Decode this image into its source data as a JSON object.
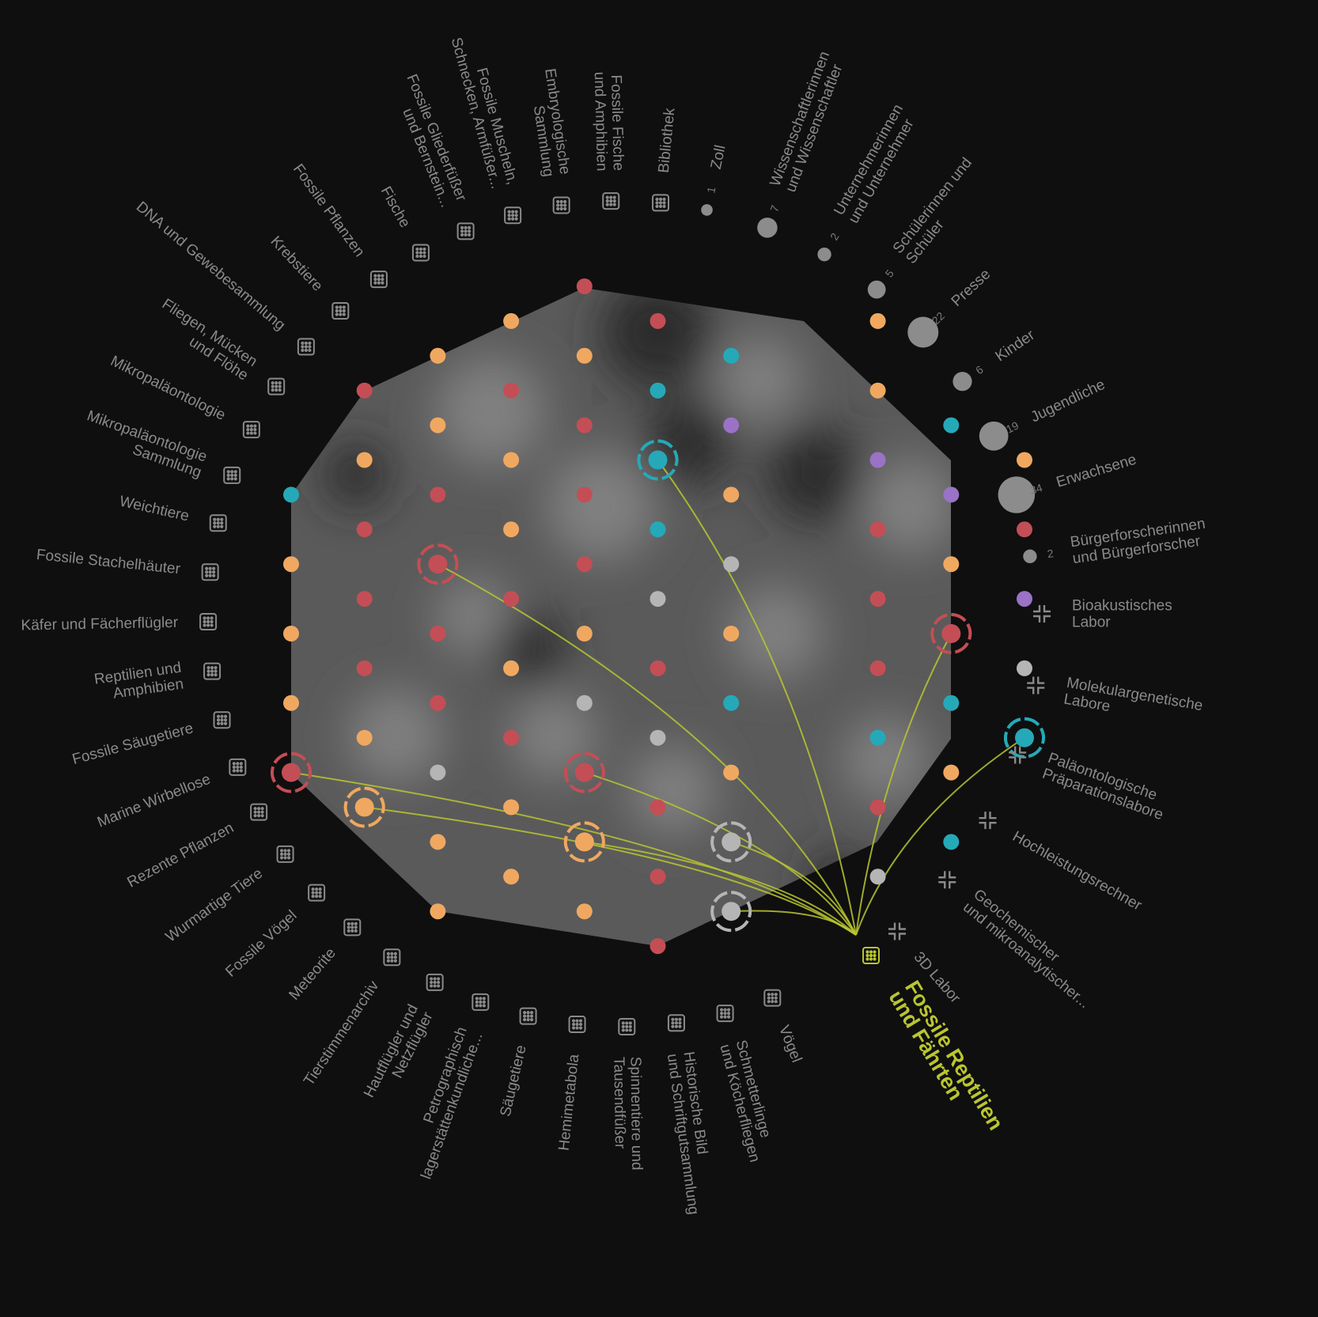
{
  "colors": {
    "background": "#0f0f0f",
    "label": "#8a8a8a",
    "highlight": "#b9c530",
    "orange": "#f0a860",
    "red": "#c44e55",
    "teal": "#25a9b8",
    "purple": "#9a72c6",
    "grey": "#b5b5b5",
    "audience_dot": "#8c8c8c"
  },
  "highlighted_collection": {
    "lines": [
      "Fossile Reptilien",
      "und Fährten"
    ],
    "icon": "collection-grid-icon"
  },
  "collections": [
    {
      "lines": [
        "Vögel"
      ]
    },
    {
      "lines": [
        "Schmetterlinge",
        "und Köcherfliegen"
      ]
    },
    {
      "lines": [
        "Historische Bild",
        "und Schriftgutsammlung"
      ]
    },
    {
      "lines": [
        "Spinnentiere und",
        "Tausendfüßer"
      ]
    },
    {
      "lines": [
        "Hemimetabola"
      ]
    },
    {
      "lines": [
        "Säugetiere"
      ]
    },
    {
      "lines": [
        "Petrographisch",
        "lagerstättenkundliche..."
      ]
    },
    {
      "lines": [
        "Hautflügler und",
        "Netzflügler"
      ]
    },
    {
      "lines": [
        "Tierstimmenarchiv"
      ]
    },
    {
      "lines": [
        "Meteorite"
      ]
    },
    {
      "lines": [
        "Fossile Vögel"
      ]
    },
    {
      "lines": [
        "Wurmartige Tiere"
      ]
    },
    {
      "lines": [
        "Rezente Pflanzen"
      ]
    },
    {
      "lines": [
        "Marine Wirbellose"
      ]
    },
    {
      "lines": [
        "Fossile Säugetiere"
      ]
    },
    {
      "lines": [
        "Reptilien und",
        "Amphibien"
      ]
    },
    {
      "lines": [
        "Käfer und Fächerflügler"
      ]
    },
    {
      "lines": [
        "Fossile Stachelhäuter"
      ]
    },
    {
      "lines": [
        "Weichtiere"
      ]
    },
    {
      "lines": [
        "Mikropaläontologie",
        "Sammlung"
      ]
    },
    {
      "lines": [
        "Mikropaläontologie"
      ]
    },
    {
      "lines": [
        "Fliegen, Mücken",
        "und Flöhe"
      ]
    },
    {
      "lines": [
        "DNA und Gewebesammlung"
      ]
    },
    {
      "lines": [
        "Krebstiere"
      ]
    },
    {
      "lines": [
        "Fossile Pflanzen"
      ]
    },
    {
      "lines": [
        "Fische"
      ]
    },
    {
      "lines": [
        "Fossile Gliederfüßer",
        "und Bernstein..."
      ]
    },
    {
      "lines": [
        "Fossile Muscheln,",
        "Schnecken, Armfüßer..."
      ]
    },
    {
      "lines": [
        "Embryologische",
        "Sammlung"
      ]
    },
    {
      "lines": [
        "Fossile Fische",
        "und Amphibien"
      ]
    },
    {
      "lines": [
        "Bibliothek"
      ]
    }
  ],
  "audiences": [
    {
      "lines": [
        "Zoll"
      ],
      "count": "1"
    },
    {
      "lines": [
        "Wissenschaftlerinnen",
        "und Wissenschaftler"
      ],
      "count": "7"
    },
    {
      "lines": [
        "Unternehmerinnen",
        "und Unternehmer"
      ],
      "count": "2"
    },
    {
      "lines": [
        "Schülerinnen und",
        "Schüler"
      ],
      "count": "5"
    },
    {
      "lines": [
        "Presse"
      ],
      "count": "22"
    },
    {
      "lines": [
        "Kinder"
      ],
      "count": "6"
    },
    {
      "lines": [
        "Jugendliche"
      ],
      "count": "19"
    },
    {
      "lines": [
        "Erwachsene"
      ],
      "count": "34"
    },
    {
      "lines": [
        "Bürgerforscherinnen",
        "und Bürgerforscher"
      ],
      "count": "2"
    }
  ],
  "labs": [
    {
      "lines": [
        "Bioakustisches",
        "Labor"
      ]
    },
    {
      "lines": [
        "Molekulargenetische",
        "Labore"
      ]
    },
    {
      "lines": [
        "Paläontologische",
        "Präparationslabore"
      ]
    },
    {
      "lines": [
        "Hochleistungsrechner"
      ]
    },
    {
      "lines": [
        "Geochemischer",
        "und mikroanalytischer..."
      ]
    },
    {
      "lines": [
        "3D Labor"
      ]
    }
  ],
  "node_colors": {
    "o": "orange",
    "r": "red",
    "t": "teal",
    "p": "purple",
    "g": "grey"
  },
  "nodes": [
    {
      "col": 4,
      "row": 0,
      "c": "r"
    },
    {
      "col": 3,
      "row": 1,
      "c": "o"
    },
    {
      "col": 5,
      "row": 1,
      "c": "r"
    },
    {
      "col": 8,
      "row": 1,
      "c": "o"
    },
    {
      "col": 2,
      "row": 2,
      "c": "o"
    },
    {
      "col": 4,
      "row": 2,
      "c": "o"
    },
    {
      "col": 6,
      "row": 2,
      "c": "t"
    },
    {
      "col": 1,
      "row": 3,
      "c": "r"
    },
    {
      "col": 3,
      "row": 3,
      "c": "r"
    },
    {
      "col": 5,
      "row": 3,
      "c": "t"
    },
    {
      "col": 8,
      "row": 3,
      "c": "o"
    },
    {
      "col": 2,
      "row": 4,
      "c": "o"
    },
    {
      "col": 4,
      "row": 4,
      "c": "r"
    },
    {
      "col": 6,
      "row": 4,
      "c": "p"
    },
    {
      "col": 9,
      "row": 4,
      "c": "t"
    },
    {
      "col": 1,
      "row": 5,
      "c": "o"
    },
    {
      "col": 3,
      "row": 5,
      "c": "o"
    },
    {
      "col": 5,
      "row": 5,
      "c": "t",
      "selected": true
    },
    {
      "col": 8,
      "row": 5,
      "c": "p"
    },
    {
      "col": 10,
      "row": 5,
      "c": "o"
    },
    {
      "col": 0,
      "row": 6,
      "c": "t"
    },
    {
      "col": 2,
      "row": 6,
      "c": "r"
    },
    {
      "col": 4,
      "row": 6,
      "c": "r"
    },
    {
      "col": 6,
      "row": 6,
      "c": "o"
    },
    {
      "col": 9,
      "row": 6,
      "c": "p"
    },
    {
      "col": 1,
      "row": 7,
      "c": "r"
    },
    {
      "col": 3,
      "row": 7,
      "c": "o"
    },
    {
      "col": 5,
      "row": 7,
      "c": "t"
    },
    {
      "col": 8,
      "row": 7,
      "c": "r"
    },
    {
      "col": 10,
      "row": 7,
      "c": "r"
    },
    {
      "col": 0,
      "row": 8,
      "c": "o"
    },
    {
      "col": 2,
      "row": 8,
      "c": "r",
      "selected": true
    },
    {
      "col": 4,
      "row": 8,
      "c": "r"
    },
    {
      "col": 6,
      "row": 8,
      "c": "g"
    },
    {
      "col": 9,
      "row": 8,
      "c": "o"
    },
    {
      "col": 1,
      "row": 9,
      "c": "r"
    },
    {
      "col": 3,
      "row": 9,
      "c": "r"
    },
    {
      "col": 5,
      "row": 9,
      "c": "g"
    },
    {
      "col": 8,
      "row": 9,
      "c": "r"
    },
    {
      "col": 10,
      "row": 9,
      "c": "p"
    },
    {
      "col": 0,
      "row": 10,
      "c": "o"
    },
    {
      "col": 2,
      "row": 10,
      "c": "r"
    },
    {
      "col": 4,
      "row": 10,
      "c": "o"
    },
    {
      "col": 6,
      "row": 10,
      "c": "o"
    },
    {
      "col": 9,
      "row": 10,
      "c": "r",
      "selected": true
    },
    {
      "col": 1,
      "row": 11,
      "c": "r"
    },
    {
      "col": 3,
      "row": 11,
      "c": "o"
    },
    {
      "col": 5,
      "row": 11,
      "c": "r"
    },
    {
      "col": 8,
      "row": 11,
      "c": "r"
    },
    {
      "col": 10,
      "row": 11,
      "c": "g"
    },
    {
      "col": 0,
      "row": 12,
      "c": "o"
    },
    {
      "col": 2,
      "row": 12,
      "c": "r"
    },
    {
      "col": 4,
      "row": 12,
      "c": "g"
    },
    {
      "col": 6,
      "row": 12,
      "c": "t"
    },
    {
      "col": 9,
      "row": 12,
      "c": "t"
    },
    {
      "col": 1,
      "row": 13,
      "c": "o"
    },
    {
      "col": 3,
      "row": 13,
      "c": "r"
    },
    {
      "col": 5,
      "row": 13,
      "c": "g"
    },
    {
      "col": 8,
      "row": 13,
      "c": "t"
    },
    {
      "col": 10,
      "row": 13,
      "c": "t",
      "selected": true
    },
    {
      "col": 0,
      "row": 14,
      "c": "r",
      "selected": true
    },
    {
      "col": 2,
      "row": 14,
      "c": "g"
    },
    {
      "col": 4,
      "row": 14,
      "c": "r",
      "selected": true
    },
    {
      "col": 6,
      "row": 14,
      "c": "o"
    },
    {
      "col": 9,
      "row": 14,
      "c": "o"
    },
    {
      "col": 1,
      "row": 15,
      "c": "o",
      "selected": true
    },
    {
      "col": 3,
      "row": 15,
      "c": "o"
    },
    {
      "col": 5,
      "row": 15,
      "c": "r"
    },
    {
      "col": 8,
      "row": 15,
      "c": "r"
    },
    {
      "col": 2,
      "row": 16,
      "c": "o"
    },
    {
      "col": 4,
      "row": 16,
      "c": "o",
      "selected": true
    },
    {
      "col": 6,
      "row": 16,
      "c": "g",
      "selected": true
    },
    {
      "col": 9,
      "row": 16,
      "c": "t"
    },
    {
      "col": 3,
      "row": 17,
      "c": "o"
    },
    {
      "col": 5,
      "row": 17,
      "c": "r"
    },
    {
      "col": 8,
      "row": 17,
      "c": "g"
    },
    {
      "col": 2,
      "row": 18,
      "c": "o"
    },
    {
      "col": 4,
      "row": 18,
      "c": "o"
    },
    {
      "col": 6,
      "row": 18,
      "c": "g",
      "selected": true
    },
    {
      "col": 5,
      "row": 19,
      "c": "r"
    }
  ]
}
